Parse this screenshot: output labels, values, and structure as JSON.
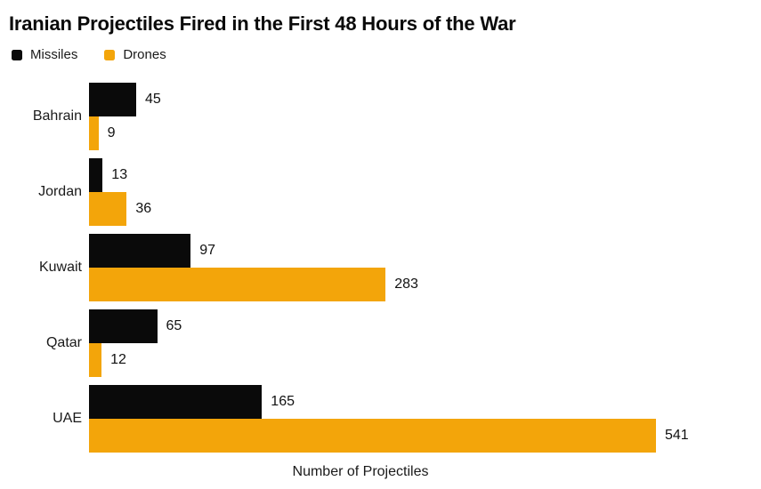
{
  "title": "Iranian Projectiles Fired in the First 48 Hours of the War",
  "colors": {
    "missiles": "#0a0a0a",
    "drones": "#f3a50a",
    "text": "#111111",
    "background": "#ffffff"
  },
  "chart_data": {
    "type": "bar",
    "orientation": "horizontal",
    "title": "Iranian Projectiles Fired in the First 48 Hours of the War",
    "xlabel": "Number of Projectiles",
    "ylabel": "",
    "categories": [
      "Bahrain",
      "Jordan",
      "Kuwait",
      "Qatar",
      "UAE"
    ],
    "series": [
      {
        "name": "Missiles",
        "color": "#0a0a0a",
        "values": [
          45,
          13,
          97,
          65,
          165
        ]
      },
      {
        "name": "Drones",
        "color": "#f3a50a",
        "values": [
          9,
          36,
          283,
          12,
          541
        ]
      }
    ],
    "xlim": [
      0,
      541
    ],
    "grid": false,
    "legend_position": "top-left",
    "value_labels": true
  }
}
